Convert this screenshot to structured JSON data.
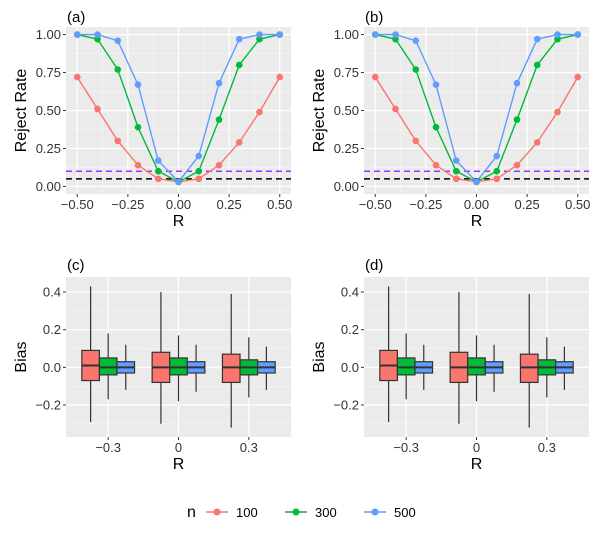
{
  "chart_data": [
    {
      "panel": "(a)",
      "type": "line",
      "xlabel": "R",
      "ylabel": "Reject Rate",
      "xlim": [
        -0.5,
        0.5
      ],
      "ylim": [
        0,
        1
      ],
      "xticks": [
        "-0.50",
        "-0.25",
        "0.00",
        "0.25",
        "0.50"
      ],
      "yticks": [
        "0.00",
        "0.25",
        "0.50",
        "0.75",
        "1.00"
      ],
      "x": [
        -0.5,
        -0.4,
        -0.3,
        -0.2,
        -0.1,
        0.0,
        0.1,
        0.2,
        0.3,
        0.4,
        0.5
      ],
      "series": [
        {
          "name": "100",
          "color": "#F8766D",
          "values": [
            0.72,
            0.51,
            0.3,
            0.14,
            0.05,
            0.03,
            0.05,
            0.14,
            0.29,
            0.49,
            0.72
          ]
        },
        {
          "name": "300",
          "color": "#00BA38",
          "values": [
            1.0,
            0.97,
            0.77,
            0.39,
            0.1,
            0.03,
            0.1,
            0.44,
            0.8,
            0.97,
            1.0
          ]
        },
        {
          "name": "500",
          "color": "#619CFF",
          "values": [
            1.0,
            1.0,
            0.96,
            0.67,
            0.17,
            0.03,
            0.2,
            0.68,
            0.97,
            1.0,
            1.0
          ]
        }
      ],
      "reference_lines": [
        {
          "y": 0.05,
          "color": "#000000",
          "style": "dashed"
        },
        {
          "y": 0.1,
          "color": "#9933FF",
          "style": "dashed"
        }
      ],
      "grid": true
    },
    {
      "panel": "(b)",
      "type": "line",
      "xlabel": "R",
      "ylabel": "Reject Rate",
      "xlim": [
        -0.5,
        0.5
      ],
      "ylim": [
        0,
        1
      ],
      "xticks": [
        "-0.50",
        "-0.25",
        "0.00",
        "0.25",
        "0.50"
      ],
      "yticks": [
        "0.00",
        "0.25",
        "0.50",
        "0.75",
        "1.00"
      ],
      "x": [
        -0.5,
        -0.4,
        -0.3,
        -0.2,
        -0.1,
        0.0,
        0.1,
        0.2,
        0.3,
        0.4,
        0.5
      ],
      "series": [
        {
          "name": "100",
          "color": "#F8766D",
          "values": [
            0.72,
            0.51,
            0.3,
            0.14,
            0.05,
            0.03,
            0.05,
            0.14,
            0.29,
            0.49,
            0.72
          ]
        },
        {
          "name": "300",
          "color": "#00BA38",
          "values": [
            1.0,
            0.97,
            0.77,
            0.39,
            0.1,
            0.03,
            0.1,
            0.44,
            0.8,
            0.97,
            1.0
          ]
        },
        {
          "name": "500",
          "color": "#619CFF",
          "values": [
            1.0,
            1.0,
            0.96,
            0.67,
            0.17,
            0.03,
            0.2,
            0.68,
            0.97,
            1.0,
            1.0
          ]
        }
      ],
      "reference_lines": [
        {
          "y": 0.05,
          "color": "#000000",
          "style": "dashed"
        },
        {
          "y": 0.1,
          "color": "#9933FF",
          "style": "dashed"
        }
      ],
      "grid": true
    },
    {
      "panel": "(c)",
      "type": "box",
      "xlabel": "R",
      "ylabel": "Bias",
      "categories": [
        "-0.3",
        "0",
        "0.3"
      ],
      "yticks": [
        "-0.2",
        "0.0",
        "0.2",
        "0.4"
      ],
      "ylim": [
        -0.37,
        0.48
      ],
      "series": [
        {
          "name": "100",
          "color": "#F8766D",
          "boxes": [
            {
              "min": -0.29,
              "q1": -0.07,
              "median": 0.01,
              "q3": 0.09,
              "max": 0.43
            },
            {
              "min": -0.3,
              "q1": -0.08,
              "median": 0.0,
              "q3": 0.08,
              "max": 0.4
            },
            {
              "min": -0.32,
              "q1": -0.08,
              "median": 0.0,
              "q3": 0.07,
              "max": 0.39
            }
          ]
        },
        {
          "name": "300",
          "color": "#00BA38",
          "boxes": [
            {
              "min": -0.17,
              "q1": -0.04,
              "median": 0.0,
              "q3": 0.05,
              "max": 0.18
            },
            {
              "min": -0.18,
              "q1": -0.04,
              "median": 0.0,
              "q3": 0.05,
              "max": 0.17
            },
            {
              "min": -0.16,
              "q1": -0.04,
              "median": 0.0,
              "q3": 0.04,
              "max": 0.16
            }
          ]
        },
        {
          "name": "500",
          "color": "#619CFF",
          "boxes": [
            {
              "min": -0.12,
              "q1": -0.03,
              "median": 0.0,
              "q3": 0.03,
              "max": 0.12
            },
            {
              "min": -0.13,
              "q1": -0.03,
              "median": 0.0,
              "q3": 0.03,
              "max": 0.12
            },
            {
              "min": -0.12,
              "q1": -0.03,
              "median": 0.0,
              "q3": 0.03,
              "max": 0.11
            }
          ]
        }
      ],
      "grid": true
    },
    {
      "panel": "(d)",
      "type": "box",
      "xlabel": "R",
      "ylabel": "Bias",
      "categories": [
        "-0.3",
        "0",
        "0.3"
      ],
      "yticks": [
        "-0.2",
        "0.0",
        "0.2",
        "0.4"
      ],
      "ylim": [
        -0.37,
        0.48
      ],
      "series": [
        {
          "name": "100",
          "color": "#F8766D",
          "boxes": [
            {
              "min": -0.29,
              "q1": -0.07,
              "median": 0.01,
              "q3": 0.09,
              "max": 0.43
            },
            {
              "min": -0.3,
              "q1": -0.08,
              "median": 0.0,
              "q3": 0.08,
              "max": 0.4
            },
            {
              "min": -0.32,
              "q1": -0.08,
              "median": 0.0,
              "q3": 0.07,
              "max": 0.39
            }
          ]
        },
        {
          "name": "300",
          "color": "#00BA38",
          "boxes": [
            {
              "min": -0.17,
              "q1": -0.04,
              "median": 0.0,
              "q3": 0.05,
              "max": 0.18
            },
            {
              "min": -0.18,
              "q1": -0.04,
              "median": 0.0,
              "q3": 0.05,
              "max": 0.17
            },
            {
              "min": -0.16,
              "q1": -0.04,
              "median": 0.0,
              "q3": 0.04,
              "max": 0.16
            }
          ]
        },
        {
          "name": "500",
          "color": "#619CFF",
          "boxes": [
            {
              "min": -0.12,
              "q1": -0.03,
              "median": 0.0,
              "q3": 0.03,
              "max": 0.12
            },
            {
              "min": -0.13,
              "q1": -0.03,
              "median": 0.0,
              "q3": 0.03,
              "max": 0.12
            },
            {
              "min": -0.12,
              "q1": -0.03,
              "median": 0.0,
              "q3": 0.03,
              "max": 0.11
            }
          ]
        }
      ],
      "grid": true
    }
  ],
  "legend": {
    "title": "n",
    "position": "bottom",
    "items": [
      {
        "label": "100",
        "color": "#F8766D"
      },
      {
        "label": "300",
        "color": "#00BA38"
      },
      {
        "label": "500",
        "color": "#619CFF"
      }
    ]
  }
}
